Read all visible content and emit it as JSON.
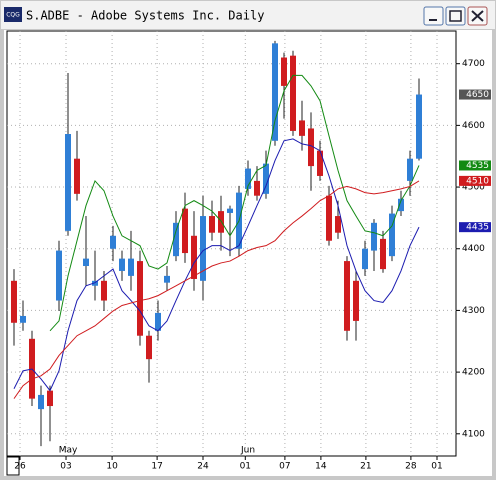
{
  "chart_data": {
    "type": "candlestick",
    "title": "S.ADBE - Adobe Systems Inc. Daily",
    "app_icon": "CQG",
    "ylim": [
      4064,
      4753
    ],
    "yticks": [
      4100,
      4200,
      4300,
      4400,
      4500,
      4600,
      4700
    ],
    "grid": true,
    "up_color": "#2f7fd6",
    "down_color": "#d01c1f",
    "xticks": [
      {
        "value": 0.67,
        "label": "26"
      },
      {
        "value": 5.78,
        "label": "03"
      },
      {
        "value": 10.9,
        "label": "10"
      },
      {
        "value": 15.9,
        "label": "17"
      },
      {
        "value": 21,
        "label": "24"
      },
      {
        "value": 25.7,
        "label": "01"
      },
      {
        "value": 30.1,
        "label": "07"
      },
      {
        "value": 34.1,
        "label": "14"
      },
      {
        "value": 39.1,
        "label": "21"
      },
      {
        "value": 44.1,
        "label": "28"
      },
      {
        "value": 47,
        "label": "01"
      }
    ],
    "months": [
      {
        "value": 6,
        "label": "May"
      },
      {
        "value": 26,
        "label": "Jun"
      }
    ],
    "open": [
      4348,
      4280,
      4254,
      4140,
      4170,
      4316,
      4429,
      4546,
      4372,
      4340,
      4348,
      4400,
      4364,
      4356,
      4380,
      4259,
      4267,
      4345,
      4388,
      4465,
      4421,
      4348,
      4453,
      4461,
      4458,
      4400,
      4497,
      4510,
      4489,
      4575,
      4710,
      4713,
      4608,
      4595,
      4559,
      4486,
      4453,
      4380,
      4348,
      4367,
      4397,
      4416,
      4388,
      4461,
      4510,
      4546
    ],
    "high": [
      4367,
      4316,
      4267,
      4178,
      4178,
      4413,
      4685,
      4591,
      4453,
      4397,
      4364,
      4437,
      4397,
      4429,
      4397,
      4267,
      4316,
      4372,
      4461,
      4491,
      4461,
      4486,
      4478,
      4486,
      4470,
      4502,
      4543,
      4534,
      4559,
      4737,
      4718,
      4721,
      4640,
      4621,
      4575,
      4502,
      4478,
      4388,
      4364,
      4413,
      4448,
      4429,
      4470,
      4494,
      4559,
      4676
    ],
    "low": [
      4243,
      4267,
      4145,
      4080,
      4088,
      4299,
      4421,
      4478,
      4340,
      4316,
      4299,
      4380,
      4348,
      4332,
      4243,
      4183,
      4251,
      4332,
      4380,
      4377,
      4332,
      4316,
      4413,
      4397,
      4388,
      4388,
      4486,
      4478,
      4481,
      4567,
      4611,
      4583,
      4559,
      4494,
      4510,
      4405,
      4416,
      4251,
      4251,
      4356,
      4364,
      4361,
      4380,
      4453,
      4486,
      4543
    ],
    "close": [
      4280,
      4291,
      4157,
      4163,
      4145,
      4397,
      4586,
      4489,
      4384,
      4348,
      4316,
      4421,
      4384,
      4384,
      4259,
      4221,
      4296,
      4356,
      4442,
      4393,
      4351,
      4453,
      4426,
      4426,
      4465,
      4491,
      4530,
      4486,
      4538,
      4733,
      4664,
      4591,
      4583,
      4534,
      4518,
      4413,
      4426,
      4267,
      4283,
      4400,
      4442,
      4367,
      4457,
      4481,
      4546,
      4650
    ],
    "series": [
      {
        "color": "#138a13",
        "values": [
          null,
          null,
          null,
          null,
          4267,
          4283,
          4356,
          4413,
          4470,
          4510,
          4494,
          4453,
          4421,
          4413,
          4405,
          4372,
          4367,
          4377,
          4429,
          4470,
          4478,
          4470,
          4461,
          4445,
          4421,
          4445,
          4502,
          4527,
          4535,
          4608,
          4656,
          4681,
          4681,
          4664,
          4640,
          4583,
          4527,
          4478,
          4453,
          4429,
          4426,
          4421,
          4437,
          4478,
          4502,
          4535
        ]
      },
      {
        "color": "#1c1cb0",
        "values": [
          4173,
          4202,
          4205,
          4189,
          4170,
          4202,
          4267,
          4316,
          4340,
          4345,
          4356,
          4367,
          4332,
          4316,
          4299,
          4275,
          4267,
          4283,
          4316,
          4348,
          4377,
          4397,
          4405,
          4405,
          4397,
          4405,
          4437,
          4470,
          4502,
          4543,
          4575,
          4578,
          4570,
          4567,
          4559,
          4518,
          4470,
          4405,
          4364,
          4332,
          4316,
          4313,
          4332,
          4364,
          4405,
          4435
        ]
      },
      {
        "color": "#d01c1f",
        "values": [
          4157,
          4178,
          4189,
          4194,
          4205,
          4227,
          4243,
          4259,
          4267,
          4275,
          4287,
          4299,
          4308,
          4312,
          4316,
          4319,
          4324,
          4332,
          4340,
          4348,
          4356,
          4364,
          4372,
          4377,
          4380,
          4388,
          4397,
          4402,
          4405,
          4413,
          4429,
          4442,
          4453,
          4465,
          4478,
          4486,
          4497,
          4501,
          4497,
          4491,
          4489,
          4491,
          4494,
          4497,
          4501,
          4510
        ]
      }
    ],
    "price_labels": [
      {
        "value": 4650,
        "color": "#555555"
      },
      {
        "value": 4535,
        "color": "#138a13"
      },
      {
        "value": 4510,
        "color": "#d01c1f"
      },
      {
        "value": 4435,
        "color": "#1c1cb0"
      }
    ]
  }
}
